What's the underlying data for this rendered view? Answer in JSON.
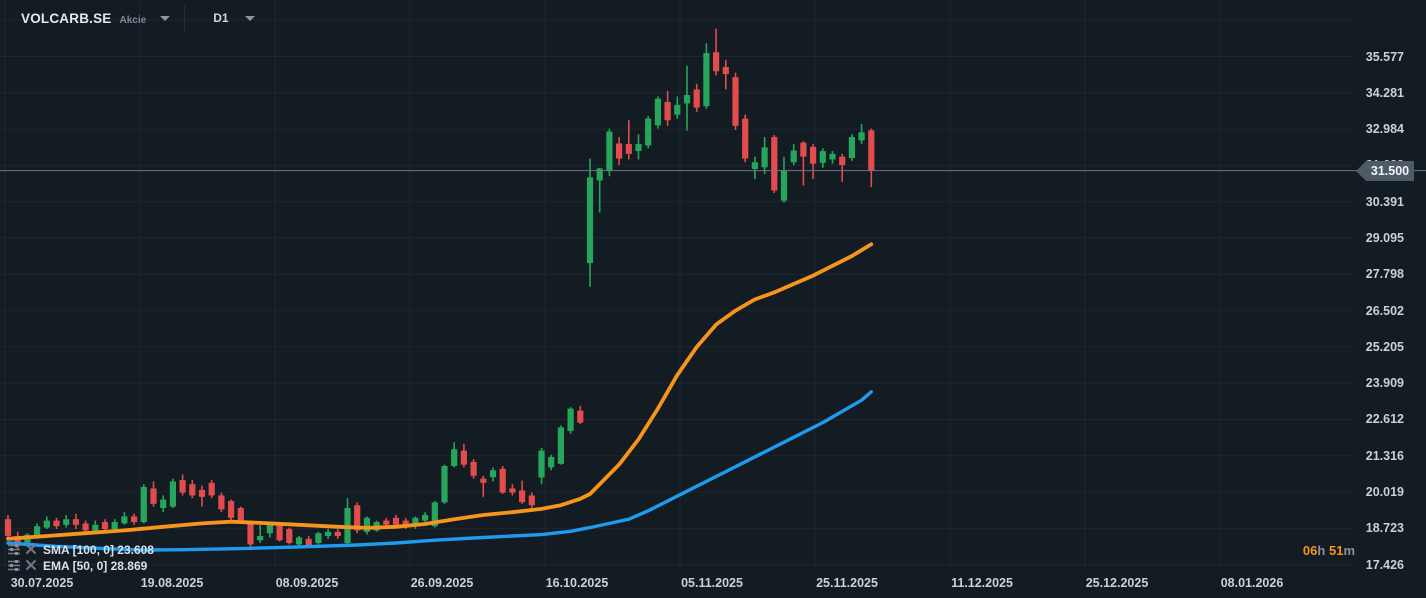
{
  "toolbar": {
    "symbol": "VOLCARB.SE",
    "symbol_type": "Akcie",
    "timeframe": "D1"
  },
  "indicators": [
    {
      "name": "SMA",
      "params": "[100, 0]",
      "value": "23.608"
    },
    {
      "name": "EMA",
      "params": "[50, 0]",
      "value": "28.869"
    }
  ],
  "current_price": {
    "label": "31.500"
  },
  "countdown": {
    "hours": "06",
    "hours_unit": "h",
    "minutes": "51",
    "minutes_unit": "m"
  },
  "colors": {
    "background": "#131b23",
    "grid": "#1d2731",
    "up": "#26a65b",
    "down": "#e24c4c",
    "sma": "#1f9bee",
    "ema": "#f7941d",
    "axis_text": "#c9d1d9",
    "price_line": "#6b7682",
    "price_tag_bg": "#4e5a66",
    "countdown_accent": "#f7941d"
  },
  "chart_data": {
    "type": "candlestick",
    "symbol": "VOLCARB.SE",
    "timeframe": "D1",
    "current_price": 31.5,
    "ylim": [
      17.426,
      36.874
    ],
    "price_grid": [
      36.874,
      35.577,
      34.281,
      32.984,
      31.688,
      30.391,
      29.095,
      27.798,
      26.502,
      25.205,
      23.909,
      22.612,
      21.316,
      20.019,
      18.723,
      17.426
    ],
    "price_axis_labels": [
      "35.577",
      "34.281",
      "32.984",
      "31.688",
      "30.391",
      "29.095",
      "27.798",
      "26.502",
      "25.205",
      "23.909",
      "22.612",
      "21.316",
      "20.019",
      "18.723",
      "17.426"
    ],
    "time_axis_labels": [
      "30.07.2025",
      "19.08.2025",
      "08.09.2025",
      "26.09.2025",
      "16.10.2025",
      "05.11.2025",
      "25.11.2025",
      "11.12.2025",
      "25.12.2025",
      "08.01.2026"
    ],
    "candles": [
      [
        "25.07.2025",
        19.05,
        19.2,
        18.3,
        18.45
      ],
      [
        "28.07.2025",
        18.45,
        18.6,
        17.95,
        18.1
      ],
      [
        "29.07.2025",
        18.1,
        18.55,
        18.05,
        18.5
      ],
      [
        "30.07.2025",
        18.45,
        18.9,
        18.35,
        18.8
      ],
      [
        "31.07.2025",
        18.75,
        19.15,
        18.7,
        19.0
      ],
      [
        "01.08.2025",
        19.0,
        19.1,
        18.7,
        18.8
      ],
      [
        "04.08.2025",
        18.85,
        19.2,
        18.75,
        19.05
      ],
      [
        "05.08.2025",
        19.05,
        19.25,
        18.7,
        18.85
      ],
      [
        "06.08.2025",
        18.9,
        19.0,
        18.5,
        18.65
      ],
      [
        "07.08.2025",
        18.65,
        19.0,
        18.55,
        18.85
      ],
      [
        "08.08.2025",
        18.95,
        19.05,
        18.6,
        18.7
      ],
      [
        "11.08.2025",
        18.7,
        19.05,
        18.65,
        18.95
      ],
      [
        "12.08.2025",
        18.9,
        19.3,
        18.85,
        19.15
      ],
      [
        "13.08.2025",
        19.15,
        19.25,
        18.85,
        18.95
      ],
      [
        "14.08.2025",
        18.95,
        20.3,
        18.9,
        20.2
      ],
      [
        "15.08.2025",
        20.15,
        20.4,
        19.5,
        19.6
      ],
      [
        "18.08.2025",
        19.45,
        19.9,
        19.3,
        19.75
      ],
      [
        "19.08.2025",
        19.5,
        20.5,
        19.45,
        20.4
      ],
      [
        "20.08.2025",
        20.45,
        20.65,
        19.9,
        20.0
      ],
      [
        "21.08.2025",
        20.3,
        20.45,
        19.8,
        19.9
      ],
      [
        "22.08.2025",
        20.1,
        20.25,
        19.5,
        19.85
      ],
      [
        "25.08.2025",
        20.35,
        20.45,
        19.8,
        19.9
      ],
      [
        "26.08.2025",
        19.9,
        20.0,
        19.3,
        19.4
      ],
      [
        "27.08.2025",
        19.7,
        19.75,
        19.0,
        19.1
      ],
      [
        "28.08.2025",
        19.45,
        19.5,
        18.9,
        19.0
      ],
      [
        "29.08.2025",
        18.95,
        19.0,
        18.0,
        18.15
      ],
      [
        "01.09.2025",
        18.3,
        18.85,
        18.2,
        18.45
      ],
      [
        "02.09.2025",
        18.55,
        18.9,
        18.4,
        18.85
      ],
      [
        "03.09.2025",
        18.9,
        18.95,
        18.25,
        18.3
      ],
      [
        "04.09.2025",
        18.7,
        18.75,
        18.15,
        18.2
      ],
      [
        "05.09.2025",
        18.15,
        18.45,
        18.05,
        18.4
      ],
      [
        "08.09.2025",
        18.35,
        18.45,
        18.05,
        18.1
      ],
      [
        "09.09.2025",
        18.2,
        18.6,
        18.15,
        18.55
      ],
      [
        "10.09.2025",
        18.45,
        18.7,
        18.35,
        18.6
      ],
      [
        "11.09.2025",
        18.6,
        18.7,
        18.35,
        18.45
      ],
      [
        "12.09.2025",
        18.2,
        19.8,
        18.15,
        19.45
      ],
      [
        "15.09.2025",
        19.55,
        19.65,
        18.55,
        18.65
      ],
      [
        "16.09.2025",
        18.6,
        19.15,
        18.5,
        19.1
      ],
      [
        "17.09.2025",
        18.65,
        19.0,
        18.6,
        18.95
      ],
      [
        "18.09.2025",
        19.0,
        19.1,
        18.8,
        18.85
      ],
      [
        "19.09.2025",
        19.1,
        19.2,
        18.8,
        18.85
      ],
      [
        "22.09.2025",
        19.0,
        19.1,
        18.7,
        18.8
      ],
      [
        "23.09.2025",
        18.8,
        19.15,
        18.7,
        19.1
      ],
      [
        "24.09.2025",
        19.0,
        19.3,
        18.95,
        19.2
      ],
      [
        "25.09.2025",
        18.8,
        19.7,
        18.75,
        19.65
      ],
      [
        "26.09.2025",
        19.65,
        21.0,
        19.6,
        20.95
      ],
      [
        "29.09.2025",
        20.95,
        21.8,
        20.9,
        21.55
      ],
      [
        "30.09.2025",
        21.5,
        21.75,
        20.9,
        21.0
      ],
      [
        "01.10.2025",
        21.1,
        21.2,
        20.5,
        20.6
      ],
      [
        "02.10.2025",
        20.5,
        20.6,
        19.85,
        20.35
      ],
      [
        "03.10.2025",
        20.55,
        20.9,
        20.4,
        20.8
      ],
      [
        "06.10.2025",
        20.85,
        20.95,
        19.95,
        20.0
      ],
      [
        "07.10.2025",
        20.15,
        20.3,
        19.9,
        20.0
      ],
      [
        "08.10.2025",
        20.08,
        20.43,
        19.6,
        19.66
      ],
      [
        "09.10.2025",
        19.9,
        20.0,
        19.45,
        19.55
      ],
      [
        "10.10.2025",
        20.54,
        21.6,
        20.3,
        21.5
      ],
      [
        "13.10.2025",
        20.9,
        21.35,
        20.8,
        21.27
      ],
      [
        "14.10.2025",
        21.03,
        22.4,
        21.0,
        22.33
      ],
      [
        "15.10.2025",
        22.2,
        23.05,
        22.1,
        23.0
      ],
      [
        "16.10.2025",
        22.93,
        23.1,
        22.45,
        22.5
      ],
      [
        "17.10.2025",
        28.2,
        31.93,
        27.35,
        31.26
      ],
      [
        "20.10.2025",
        31.15,
        31.6,
        30.0,
        31.58
      ],
      [
        "21.10.2025",
        31.5,
        33.0,
        31.3,
        32.9
      ],
      [
        "22.10.2025",
        32.47,
        32.7,
        31.7,
        31.93
      ],
      [
        "23.10.2025",
        32.45,
        33.3,
        31.9,
        32.1
      ],
      [
        "24.10.2025",
        32.2,
        32.8,
        31.9,
        32.45
      ],
      [
        "27.10.2025",
        32.4,
        33.45,
        32.3,
        33.36
      ],
      [
        "28.10.2025",
        33.12,
        34.15,
        33.0,
        34.07
      ],
      [
        "29.10.2025",
        33.95,
        34.35,
        33.1,
        33.3
      ],
      [
        "30.10.2025",
        33.5,
        34.15,
        33.35,
        33.85
      ],
      [
        "31.10.2025",
        33.9,
        35.25,
        32.93,
        34.2
      ],
      [
        "03.11.2025",
        34.4,
        34.6,
        33.6,
        33.75
      ],
      [
        "04.11.2025",
        33.8,
        36.05,
        33.7,
        35.7
      ],
      [
        "05.11.2025",
        35.73,
        36.57,
        34.9,
        35.05
      ],
      [
        "06.11.2025",
        35.2,
        35.45,
        34.4,
        34.95
      ],
      [
        "07.11.2025",
        34.84,
        35.0,
        32.95,
        33.1
      ],
      [
        "10.11.2025",
        33.36,
        33.5,
        31.8,
        31.93
      ],
      [
        "11.11.2025",
        31.56,
        32.0,
        31.2,
        31.8
      ],
      [
        "12.11.2025",
        31.62,
        32.7,
        31.38,
        32.33
      ],
      [
        "13.11.2025",
        32.7,
        32.77,
        30.7,
        30.79
      ],
      [
        "14.11.2025",
        30.43,
        32.0,
        30.36,
        31.5
      ],
      [
        "17.11.2025",
        31.8,
        32.45,
        31.7,
        32.22
      ],
      [
        "18.11.2025",
        32.5,
        32.55,
        30.97,
        32.0
      ],
      [
        "19.11.2025",
        32.35,
        32.45,
        31.2,
        31.75
      ],
      [
        "20.11.2025",
        31.78,
        32.3,
        31.6,
        32.2
      ],
      [
        "21.11.2025",
        31.9,
        32.2,
        31.75,
        32.1
      ],
      [
        "24.11.2025",
        32.0,
        32.1,
        31.1,
        31.7
      ],
      [
        "25.11.2025",
        31.95,
        32.8,
        31.85,
        32.7
      ],
      [
        "26.11.2025",
        32.58,
        33.17,
        32.45,
        32.87
      ],
      [
        "27.11.2025",
        32.94,
        33.0,
        30.91,
        31.5
      ]
    ],
    "moving_averages": [
      {
        "name": "SMA",
        "period": 100,
        "shift": 0,
        "value": 23.608,
        "color": "#1f9bee",
        "width": 3.4,
        "points": [
          [
            0,
            18.2
          ],
          [
            5,
            18.08
          ],
          [
            10,
            18.0
          ],
          [
            14,
            17.95
          ],
          [
            18,
            17.96
          ],
          [
            24,
            18.0
          ],
          [
            30,
            18.06
          ],
          [
            36,
            18.13
          ],
          [
            40,
            18.2
          ],
          [
            44,
            18.3
          ],
          [
            48,
            18.38
          ],
          [
            52,
            18.45
          ],
          [
            55,
            18.5
          ],
          [
            58,
            18.62
          ],
          [
            60,
            18.75
          ],
          [
            62,
            18.9
          ],
          [
            64,
            19.05
          ],
          [
            66,
            19.35
          ],
          [
            68,
            19.7
          ],
          [
            70,
            20.05
          ],
          [
            72,
            20.4
          ],
          [
            74,
            20.75
          ],
          [
            76,
            21.1
          ],
          [
            78,
            21.45
          ],
          [
            80,
            21.8
          ],
          [
            82,
            22.15
          ],
          [
            84,
            22.5
          ],
          [
            86,
            22.9
          ],
          [
            88,
            23.3
          ],
          [
            89,
            23.6
          ]
        ]
      },
      {
        "name": "EMA",
        "period": 50,
        "shift": 0,
        "value": 28.869,
        "color": "#f7941d",
        "width": 3.8,
        "points": [
          [
            0,
            18.35
          ],
          [
            4,
            18.45
          ],
          [
            8,
            18.55
          ],
          [
            12,
            18.65
          ],
          [
            16,
            18.78
          ],
          [
            20,
            18.9
          ],
          [
            23,
            18.96
          ],
          [
            26,
            18.92
          ],
          [
            30,
            18.85
          ],
          [
            34,
            18.78
          ],
          [
            37,
            18.74
          ],
          [
            40,
            18.78
          ],
          [
            43,
            18.88
          ],
          [
            46,
            19.05
          ],
          [
            49,
            19.2
          ],
          [
            52,
            19.3
          ],
          [
            55,
            19.42
          ],
          [
            57,
            19.55
          ],
          [
            59,
            19.78
          ],
          [
            60,
            19.95
          ],
          [
            61,
            20.3
          ],
          [
            63,
            21.0
          ],
          [
            65,
            21.9
          ],
          [
            67,
            23.0
          ],
          [
            69,
            24.2
          ],
          [
            71,
            25.2
          ],
          [
            73,
            26.0
          ],
          [
            75,
            26.5
          ],
          [
            77,
            26.9
          ],
          [
            79,
            27.15
          ],
          [
            81,
            27.45
          ],
          [
            83,
            27.75
          ],
          [
            85,
            28.1
          ],
          [
            87,
            28.45
          ],
          [
            89,
            28.87
          ]
        ]
      }
    ],
    "legend_position": "bottom-left",
    "grid": true
  }
}
